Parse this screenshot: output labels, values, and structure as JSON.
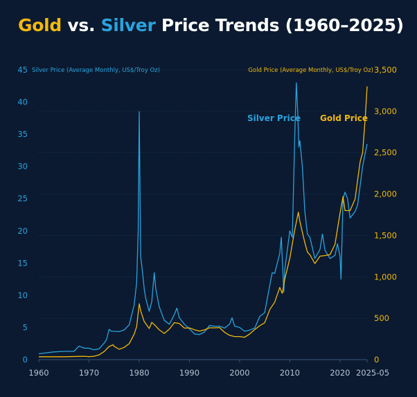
{
  "title": {
    "part1": "Gold",
    "part2": " vs. ",
    "part3": "Silver",
    "part4": " Price Trends (1960–2025)"
  },
  "colors": {
    "gold": "#f2b90c",
    "silver": "#2aa3de",
    "background": "#0b1a30",
    "grid": "#1f3a5c"
  },
  "chart_data": {
    "type": "line",
    "title": "Gold vs. Silver Price Trends (1960–2025)",
    "xlabel": "",
    "ylabel_left": "Silver Price (Average Monthly, US$/Troy Oz)",
    "ylabel_right": "Gold Price (Average Monthly, US$/Troy Oz)",
    "xlim": [
      1960,
      2025.4
    ],
    "ylim_left": [
      0,
      45
    ],
    "ylim_right": [
      0,
      3500
    ],
    "x_ticks": [
      {
        "value": 1960,
        "label": "1960"
      },
      {
        "value": 1970,
        "label": "1970"
      },
      {
        "value": 1980,
        "label": "1980"
      },
      {
        "value": 1990,
        "label": "1990"
      },
      {
        "value": 2000,
        "label": "2000"
      },
      {
        "value": 2010,
        "label": "2010"
      },
      {
        "value": 2020,
        "label": "2020"
      },
      {
        "value": 2025.4,
        "label": "2025-05"
      }
    ],
    "y_ticks_left": [
      "0",
      "5",
      "10",
      "15",
      "20",
      "25",
      "30",
      "35",
      "40",
      "45"
    ],
    "y_ticks_right": [
      "0",
      "500",
      "1,000",
      "1,500",
      "2,000",
      "2,500",
      "3,000",
      "3,500"
    ],
    "annotations": {
      "silver": "Silver Price",
      "gold": "Gold Price"
    },
    "series": [
      {
        "name": "Silver Price",
        "axis": "left",
        "color": "#2aa3de",
        "x": [
          1960,
          1963,
          1965,
          1967,
          1968,
          1969,
          1970,
          1971,
          1972,
          1973,
          1973.5,
          1974,
          1974.5,
          1975,
          1976,
          1977,
          1978,
          1979,
          1979.5,
          1979.8,
          1980.0,
          1980.3,
          1980.6,
          1981,
          1981.3,
          1982,
          1982.5,
          1983,
          1983.3,
          1984,
          1985,
          1986,
          1987,
          1987.5,
          1988,
          1989,
          1990,
          1991,
          1992,
          1993,
          1994,
          1995,
          1996,
          1997,
          1998,
          1998.5,
          1999,
          2000,
          2001,
          2002,
          2003,
          2004,
          2005,
          2006,
          2006.5,
          2007,
          2008,
          2008.3,
          2008.8,
          2009,
          2010,
          2010.5,
          2011,
          2011.3,
          2011.6,
          2011.8,
          2012,
          2012.5,
          2013,
          2013.5,
          2014,
          2015,
          2016,
          2016.5,
          2017,
          2018,
          2019,
          2019.5,
          2020,
          2020.2,
          2020.6,
          2021,
          2021.5,
          2022,
          2023,
          2023.5,
          2024,
          2024.5,
          2025,
          2025.4
        ],
        "values": [
          0.91,
          1.2,
          1.29,
          1.29,
          2.1,
          1.79,
          1.77,
          1.54,
          1.68,
          2.56,
          3.1,
          4.7,
          4.4,
          4.4,
          4.35,
          4.62,
          5.4,
          8.5,
          12,
          20,
          38.5,
          16,
          14,
          11,
          9.5,
          7.5,
          9,
          13.5,
          11,
          8.2,
          6.1,
          5.5,
          7.0,
          8.0,
          6.5,
          5.5,
          4.8,
          4.0,
          3.9,
          4.3,
          5.3,
          5.2,
          5.2,
          4.9,
          5.5,
          6.5,
          5.2,
          5.0,
          4.4,
          4.6,
          4.9,
          6.7,
          7.3,
          11.5,
          13.5,
          13.4,
          16.5,
          19,
          10.5,
          14,
          20,
          19,
          35,
          43,
          38,
          33,
          34,
          30,
          23,
          19.5,
          19,
          15.7,
          17.1,
          19.5,
          17,
          15.7,
          16.2,
          18,
          16,
          12.5,
          25,
          26,
          25,
          22,
          23,
          24,
          27,
          30,
          32,
          33.5
        ]
      },
      {
        "name": "Gold Price",
        "axis": "right",
        "color": "#f2b90c",
        "x": [
          1960,
          1965,
          1968,
          1969,
          1970,
          1971,
          1972,
          1973,
          1974,
          1974.8,
          1975,
          1976,
          1977,
          1978,
          1979,
          1979.5,
          1980.0,
          1980.3,
          1981,
          1982,
          1982.5,
          1983,
          1984,
          1985,
          1986,
          1987,
          1988,
          1989,
          1990,
          1991,
          1992,
          1993,
          1994,
          1995,
          1996,
          1997,
          1998,
          1999,
          2000,
          2001,
          2002,
          2003,
          2004,
          2005,
          2006,
          2007,
          2008,
          2008.5,
          2009,
          2010,
          2011,
          2011.7,
          2012,
          2013,
          2013.5,
          2014,
          2015,
          2016,
          2017,
          2018,
          2019,
          2020,
          2020.6,
          2021,
          2022,
          2023,
          2024,
          2024.5,
          2025,
          2025.4
        ],
        "values": [
          35,
          35,
          39,
          41,
          36,
          41,
          58,
          97,
          159,
          180,
          161,
          125,
          148,
          193,
          307,
          400,
          675,
          590,
          460,
          376,
          450,
          424,
          360,
          317,
          368,
          447,
          437,
          381,
          383,
          362,
          344,
          360,
          384,
          384,
          388,
          331,
          294,
          279,
          279,
          271,
          310,
          363,
          409,
          445,
          604,
          695,
          872,
          800,
          972,
          1225,
          1572,
          1780,
          1669,
          1411,
          1300,
          1266,
          1160,
          1250,
          1257,
          1268,
          1392,
          1770,
          1970,
          1800,
          1800,
          1940,
          2390,
          2500,
          2900,
          3300
        ]
      }
    ]
  }
}
